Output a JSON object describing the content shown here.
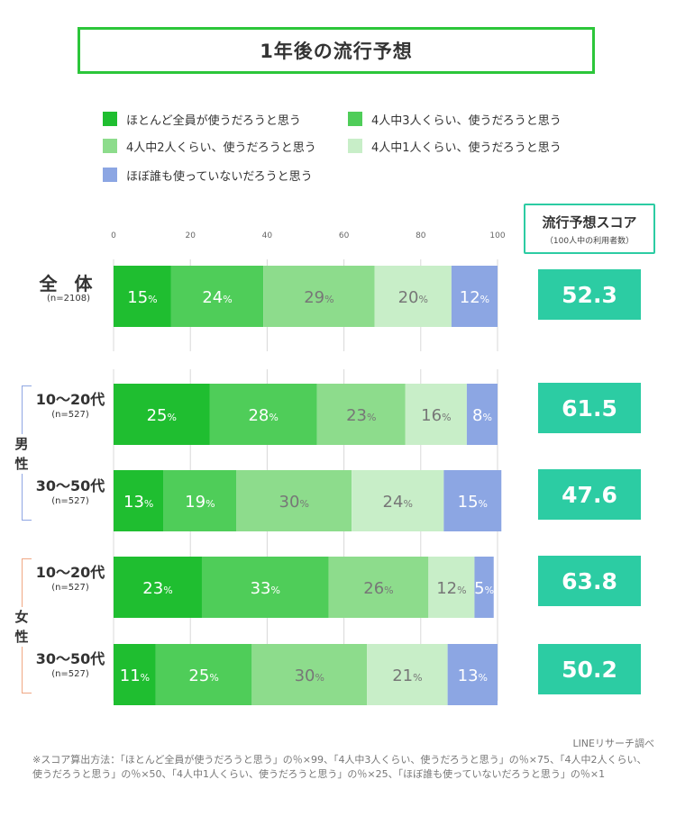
{
  "title": "1年後の流行予想",
  "legend": [
    {
      "label": "ほとんど全員が使うだろうと思う",
      "color": "#1fbe30"
    },
    {
      "label": "4人中3人くらい、使うだろうと思う",
      "color": "#4fcd59"
    },
    {
      "label": "4人中2人くらい、使うだろうと思う",
      "color": "#8ddc8c"
    },
    {
      "label": "4人中1人くらい、使うだろうと思う",
      "color": "#c8eec8"
    },
    {
      "label": "ほぼ誰も使っていないだろうと思う",
      "color": "#8ca6e3"
    }
  ],
  "score_header": {
    "title": "流行予想スコア",
    "subtitle": "（100人中の利用者数）"
  },
  "groups": {
    "male": "男性",
    "female": "女性"
  },
  "rows": [
    {
      "label": "全 体",
      "n": "(n=2108)"
    },
    {
      "label": "10〜20代",
      "n": "(n=527)"
    },
    {
      "label": "30〜50代",
      "n": "(n=527)"
    },
    {
      "label": "10〜20代",
      "n": "(n=527)"
    },
    {
      "label": "30〜50代",
      "n": "(n=527)"
    }
  ],
  "chart_data": {
    "type": "bar",
    "orientation": "horizontal-stacked-100",
    "xlim": [
      0,
      100
    ],
    "xticks": [
      0,
      20,
      40,
      60,
      80,
      100
    ],
    "unit": "%",
    "categories": [
      "全体",
      "男性 10〜20代",
      "男性 30〜50代",
      "女性 10〜20代",
      "女性 30〜50代"
    ],
    "series": [
      {
        "name": "ほとんど全員が使うだろうと思う",
        "values": [
          15,
          25,
          13,
          23,
          11
        ]
      },
      {
        "name": "4人中3人くらい、使うだろうと思う",
        "values": [
          24,
          28,
          19,
          33,
          25
        ]
      },
      {
        "name": "4人中2人くらい、使うだろうと思う",
        "values": [
          29,
          23,
          30,
          26,
          30
        ]
      },
      {
        "name": "4人中1人くらい、使うだろうと思う",
        "values": [
          20,
          16,
          24,
          12,
          21
        ]
      },
      {
        "name": "ほぼ誰も使っていないだろうと思う",
        "values": [
          12,
          8,
          15,
          5,
          13
        ]
      }
    ],
    "label_colors": [
      "#ffffff",
      "#ffffff",
      "#777777",
      "#777777",
      "#ffffff"
    ],
    "scores": [
      "52.3",
      "61.5",
      "47.6",
      "63.8",
      "50.2"
    ]
  },
  "source": "LINEリサーチ調べ",
  "note": "※スコア算出方法：「ほとんど全員が使うだろうと思う」の％×99、「4人中3人くらい、使うだろうと思う」の％×75、「4人中2人くらい、使うだろうと思う」の％×50、「4人中1人くらい、使うだろうと思う」の％×25、「ほぼ誰も使っていないだろうと思う」の％×1"
}
